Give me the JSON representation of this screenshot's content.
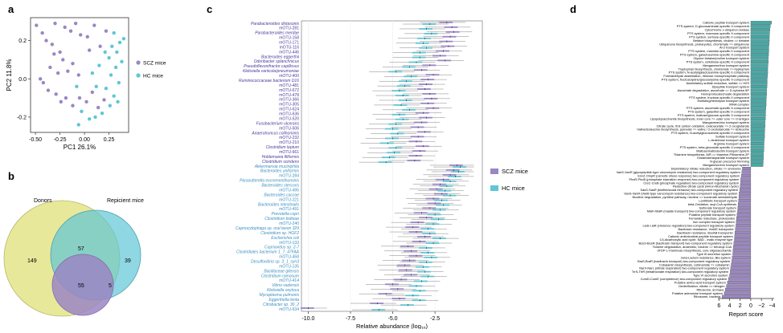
{
  "panel_labels": {
    "a": "a",
    "b": "b",
    "c": "c",
    "d": "d"
  },
  "colors": {
    "scz": "#9b86c4",
    "hc": "#5fc6d6",
    "donors": "#e4e48a",
    "teal_bar": "#46a9a6",
    "purple_bar": "#9a87bf",
    "axis": "#333333"
  },
  "chart_data": [
    {
      "id": "a",
      "type": "scatter",
      "xlabel": "PC1 26.1%",
      "ylabel": "PC2 11.8%",
      "xlim": [
        -0.55,
        0.45
      ],
      "ylim": [
        -0.28,
        0.32
      ],
      "xticks": [
        -0.5,
        -0.25,
        0,
        0.25
      ],
      "yticks": [
        -0.2,
        0,
        0.2
      ],
      "xtick_labels": [
        "-0.50",
        "-0.25",
        "0.00",
        "0.25"
      ],
      "ytick_labels": [
        "-0.2",
        "0.0",
        "0.2"
      ],
      "legend_position": "right",
      "series": [
        {
          "name": "SCZ mice",
          "color": "#9b86c4",
          "points": [
            [
              -0.49,
              0.28
            ],
            [
              -0.43,
              0.24
            ],
            [
              -0.39,
              0.2
            ],
            [
              -0.33,
              0.18
            ],
            [
              -0.3,
              0.29
            ],
            [
              -0.25,
              0.14
            ],
            [
              -0.2,
              0.27
            ],
            [
              -0.14,
              0.25
            ],
            [
              -0.09,
              0.29
            ],
            [
              -0.04,
              0.23
            ],
            [
              0.03,
              0.22
            ],
            [
              0.1,
              0.28
            ],
            [
              0.16,
              0.17
            ],
            [
              0.22,
              0.25
            ],
            [
              -0.45,
              0.0
            ],
            [
              -0.42,
              -0.02
            ],
            [
              -0.35,
              0.06
            ],
            [
              -0.27,
              0.03
            ],
            [
              -0.22,
              0.1
            ],
            [
              -0.17,
              0.04
            ],
            [
              -0.12,
              0.08
            ],
            [
              -0.06,
              0.02
            ],
            [
              -0.29,
              -0.08
            ],
            [
              -0.24,
              -0.12
            ],
            [
              -0.19,
              -0.1
            ],
            [
              -0.12,
              -0.14
            ],
            [
              -0.05,
              -0.1
            ],
            [
              0.02,
              -0.12
            ],
            [
              0.08,
              -0.07
            ],
            [
              0.14,
              -0.15
            ],
            [
              0.2,
              -0.11
            ],
            [
              -0.37,
              -0.06
            ],
            [
              -0.31,
              0.13
            ],
            [
              0.05,
              0.15
            ]
          ]
        },
        {
          "name": "HC mice",
          "color": "#5fc6d6",
          "points": [
            [
              0.28,
              0.17
            ],
            [
              0.33,
              0.14
            ],
            [
              0.36,
              0.19
            ],
            [
              0.3,
              0.24
            ],
            [
              0.25,
              0.11
            ],
            [
              0.38,
              0.09
            ],
            [
              0.32,
              0.06
            ],
            [
              0.27,
              0.02
            ],
            [
              0.35,
              -0.02
            ],
            [
              0.22,
              -0.05
            ],
            [
              0.3,
              -0.09
            ],
            [
              0.26,
              -0.14
            ],
            [
              0.34,
              -0.12
            ],
            [
              0.18,
              -0.18
            ],
            [
              0.12,
              -0.04
            ],
            [
              0.08,
              0.03
            ],
            [
              0.15,
              0.07
            ],
            [
              0.4,
              0.21
            ],
            [
              0.11,
              -0.2
            ],
            [
              -0.08,
              -0.04
            ],
            [
              -0.03,
              -0.17
            ],
            [
              -0.06,
              -0.24
            ],
            [
              0.05,
              -0.21
            ],
            [
              0.21,
              0.14
            ]
          ]
        }
      ]
    },
    {
      "id": "b",
      "type": "venn",
      "sets": [
        "Donors",
        "Repicient mice"
      ],
      "regions": {
        "donors_only": "149",
        "donors_recipients": "57",
        "all_three": "55",
        "recipient_only": "39",
        "hc_only": "5"
      }
    },
    {
      "id": "c",
      "type": "box",
      "orientation": "horizontal",
      "xlabel": "Relative abundance (log",
      "xlabel_sub": "10",
      "xlabel_end": ")",
      "xlim": [
        -10.4,
        0.3
      ],
      "xticks": [
        -10,
        -7.5,
        -5,
        -2.5
      ],
      "xtick_labels": [
        "-10.0",
        "-7.5",
        "-5.0",
        "-2.5"
      ],
      "legend_position": "right",
      "series_names": [
        "SCZ mice",
        "HC mice"
      ],
      "categories": [
        "Parabacteroides distasonis",
        "mOTU-281",
        "Parabacteroides merdae",
        "mOTU-158",
        "mOTU-171",
        "mOTU-116",
        "mOTU-446",
        "Bacteroides eggerthii",
        "Odoribacter splanchnicus",
        "Pseudoflavonifractor capillosus",
        "Klebsiella variicola/pneumoniae",
        "mOTU-400",
        "Ruminococcaceae bacterium D16",
        "mOTU-481",
        "mOTU-672",
        "mOTU-478",
        "mOTU-366",
        "mOTU-305",
        "mOTU-624",
        "mOTU-636",
        "mOTU-520",
        "Fusobacterium ulcerans",
        "mOTU-506",
        "Anaerotruncus colihominis",
        "mOTU-232",
        "mOTU-210",
        "Clostridium leptum",
        "mOTU-661",
        "Holdemania filiformis",
        "Clostridium scindens",
        "Akkermansia muciniphila",
        "Bacteroides uniformis",
        "mOTU-284",
        "Parasutterella excrementihominis",
        "Bacteroides stercoris",
        "mOTU-495",
        "Bacteroides caccae",
        "mOTU-221",
        "Bacteroides intestinalis",
        "mOTU-491",
        "Prevotella copri",
        "Clostridium bolteae",
        "mOTU-240",
        "Capnocytophaga sp. oral taxon 329",
        "Clostridium sp. HGF2",
        "Escherichia coli",
        "mOTU-133",
        "Cupriavidus sp. 2-7",
        "Clostridiales bacterium 1_7_47FAA",
        "mOTU-458",
        "Desulfovibrio sp. 3_1_syn3",
        "mOTU-135",
        "Bacillaceae gilensis",
        "Clostridium ramosum",
        "mOTU-414",
        "Vibrio vadensis",
        "Klebsiella oxytoca",
        "Mycoplasma pulmonis",
        "Eggerthella lenta",
        "Citrobacter sp. 30_2",
        "mOTU-634"
      ],
      "highlight_counts": {
        "scz_enriched": 30,
        "hc_enriched": 31
      },
      "scz_medians": [
        -1.8,
        -1.5,
        -1.4,
        -1.6,
        -1.8,
        -1.7,
        -2.0,
        -2.2,
        -1.9,
        -2.8,
        -3.3,
        -2.6,
        -2.9,
        -3.0,
        -3.1,
        -2.8,
        -2.7,
        -2.9,
        -2.6,
        -3.2,
        -3.0,
        -3.3,
        -3.5,
        -3.1,
        -3.5,
        -3.6,
        -3.2,
        -3.4,
        -3.6,
        -3.7,
        -1.2,
        -1.4,
        -1.6,
        -2.0,
        -2.2,
        -2.4,
        -2.1,
        -2.6,
        -2.5,
        -2.8,
        -3.3,
        -3.0,
        -3.5,
        -3.8,
        -3.6,
        -3.1,
        -3.4,
        -4.1,
        -3.9,
        -3.6,
        -4.0,
        -4.3,
        -4.2,
        -3.9,
        -4.5,
        -5.0,
        -4.7,
        -5.4,
        -4.6,
        -5.9,
        -10.0
      ],
      "hc_medians": [
        -2.8,
        -3.0,
        -2.7,
        -3.1,
        -3.2,
        -3.0,
        -3.4,
        -3.4,
        -3.6,
        -4.0,
        -4.8,
        -3.9,
        -4.2,
        -4.3,
        -4.6,
        -4.4,
        -4.2,
        -4.5,
        -4.0,
        -4.6,
        -4.4,
        -4.8,
        -5.0,
        -4.7,
        -5.0,
        -5.3,
        -4.8,
        -4.9,
        -5.2,
        -5.4,
        -1.0,
        -1.1,
        -1.3,
        -1.6,
        -1.8,
        -1.9,
        -1.6,
        -2.1,
        -2.0,
        -2.2,
        -2.5,
        -2.3,
        -2.6,
        -2.9,
        -2.8,
        -2.2,
        -2.6,
        -3.0,
        -2.9,
        -2.7,
        -3.0,
        -3.2,
        -3.1,
        -2.9,
        -3.3,
        -3.6,
        -3.4,
        -3.8,
        -3.4,
        -4.1,
        -5.8
      ]
    },
    {
      "id": "d",
      "type": "bar",
      "orientation": "horizontal",
      "xlabel": "Report score",
      "xlim": [
        6.2,
        -4.4
      ],
      "xticks": [
        6,
        4,
        2,
        0,
        -2,
        -4
      ],
      "xtick_labels": [
        "6",
        "4",
        "2",
        "0",
        "−2",
        "−4"
      ],
      "categories": [
        "Cationic peptide transport system",
        "PTS system, D-glucosaminate-specific II component",
        "Cytochrome o ubiquinol oxidase",
        "PTS system, mannose-specific II component",
        "PTS system, sorbose-specific II component",
        "Betaine biosynthesis, choline => betaine",
        "Ubiquinone biosynthesis, prokaryotes, chorismate => ubiquinone",
        "AI-2 transport system",
        "PTS system, mannitol-specific II component",
        "PTS system, galactosamine-specific II component",
        "Glycine betaine/proline transport system",
        "PTS system, cellobiose-specific II component",
        "Manganese/iron transport system",
        "Tryptophan biosynthesis, chorismate => tryptophan",
        "PTS system, N-acetylgalactosamine-specific II component",
        "Formaldehyde assimilation, ribulose monophosphate pathway",
        "PTS system, fructoselysine/glucoselysine-specific II component",
        "Assimilatory sulfate reduction, sulfate => H2S",
        "Dipeptide transport system",
        "Ascorbate degradation, ascorbate => D-xylulose-5P",
        "Homoprotocatechuate degradation",
        "PTS system, fructose-specific II component",
        "Multidrug/hemolysin transport system",
        "tRNA complex",
        "PTS system, ascorbate-specific II component",
        "PTS system, galactitol-specific II component",
        "PTS system, maltose/glucose-specific II component",
        "Lipopolysaccharide biosynthesis, inner core => outer core => O-antigen",
        "Manganese/zinc transport system",
        "Citrate cycle, first carbon oxidation, oxaloacetate => 2-oxoglutarate",
        "Valine/isoleucine biosynthesis, pyruvate => valine / 2-oxobutanoate => isoleucine",
        "PTS system, N-acetylglucosamine-specific II component",
        "Sulfate transport system",
        "L-Arabinose transport system",
        "Arginine transport system",
        "PTS system, beta-glucoside-specific II component",
        "Maltose/maltodextrin transport system",
        "Thiamine biosynthesis, AIR => thiamine-P/thiamine-2P",
        "Glutamate/aspartate transport system",
        "N-glycan precursor trimming",
        "Manganese/iron transport system",
        "Dissimilatory nitrate reduction, nitrate => ammonia",
        "VanS-VanR (glycopeptide-type vancomycin resistance) two-component regulatory system",
        "EnvZ-OmpR (osmotic stress response) two-component regulatory system",
        "PhoR-PhoB (phosphate starvation response) two-component regulatory system",
        "CreC-CreB (phosphate regulation) two-component regulatory system",
        "Reductive citrate cycle (Arnon-Buchanan cycle)",
        "SasS-SasR (biofilm/social behavior) two-component regulatory system",
        "VanS-VanR (VanB type vancomycin resistance) two-component regulatory system",
        "Nicotine degradation, pyridine pathway, nicotine => succinate semialdehyde",
        "Lantibiotic transport system",
        "beta-Oxidation, acyl-CoA synthesis",
        "Sulfonate transport system",
        "MalK-MalR (malate transport) two-component regulatory system",
        "Putative peptide transport system",
        "Fumarate reductase, prokaryotes",
        "Iron complex transport system",
        "LiaS-LiaR (virulence regulation) two-component regulatory system",
        "Bacitracin resistance, VraDE transporter",
        "Bacitracin resistance, BceAB transporter",
        "Cationic antimicrobial peptide transport system",
        "C4-dicarboxylic acid cycle, NAD - malic enzyme type",
        "BceS-BceR (bacitracin transport) two-component regulatory system",
        "Toluene degradation, anaerobic, toluene => benzoyl-CoA",
        "dTDP-L-rhamnose biosynthesis, core oligosaccharide",
        "Type III secretion system",
        "beta-Lactam resistance, Bla system",
        "BraS-BraR (bacitracin transport) two-component regulatory system",
        "Cobalamin biosynthesis, cobinamide => cobalamin",
        "NarX-NarL (nitrate respiration) two-component regulatory system",
        "TrrS-TtrR (tetrathionate respiration) two-component regulatory system",
        "Type VI secretion system",
        "ComD-ComE (competence) two-component regulatory system",
        "Putative amino-acid transport system",
        "Denitrification, nitrate => nitrogen",
        "Ribosome, archaea",
        "Putative adenosine transport system",
        "Ribosome, bacteria"
      ],
      "values": [
        -3.9,
        -3.7,
        -3.6,
        -3.55,
        -3.5,
        -3.5,
        -3.45,
        -3.4,
        -3.4,
        -3.35,
        -3.3,
        -3.3,
        -3.25,
        -3.2,
        -3.2,
        -3.15,
        -3.1,
        -3.1,
        -3.05,
        -3.0,
        -3.0,
        -2.95,
        -2.9,
        -2.9,
        -2.85,
        -2.8,
        -2.8,
        -2.75,
        -2.7,
        -2.7,
        -2.65,
        -2.6,
        -2.6,
        -2.55,
        -2.5,
        -2.5,
        -2.45,
        -2.4,
        -2.4,
        -2.35,
        -2.3,
        1.6,
        1.7,
        1.8,
        1.9,
        1.95,
        2.0,
        2.1,
        2.2,
        2.25,
        2.3,
        2.4,
        2.45,
        2.5,
        2.6,
        2.7,
        2.75,
        2.8,
        2.9,
        3.0,
        3.05,
        3.1,
        3.2,
        3.3,
        3.35,
        3.4,
        3.5,
        3.6,
        3.7,
        3.8,
        3.9,
        4.0,
        4.2,
        4.4,
        4.6,
        4.8,
        5.0,
        5.4
      ]
    }
  ]
}
